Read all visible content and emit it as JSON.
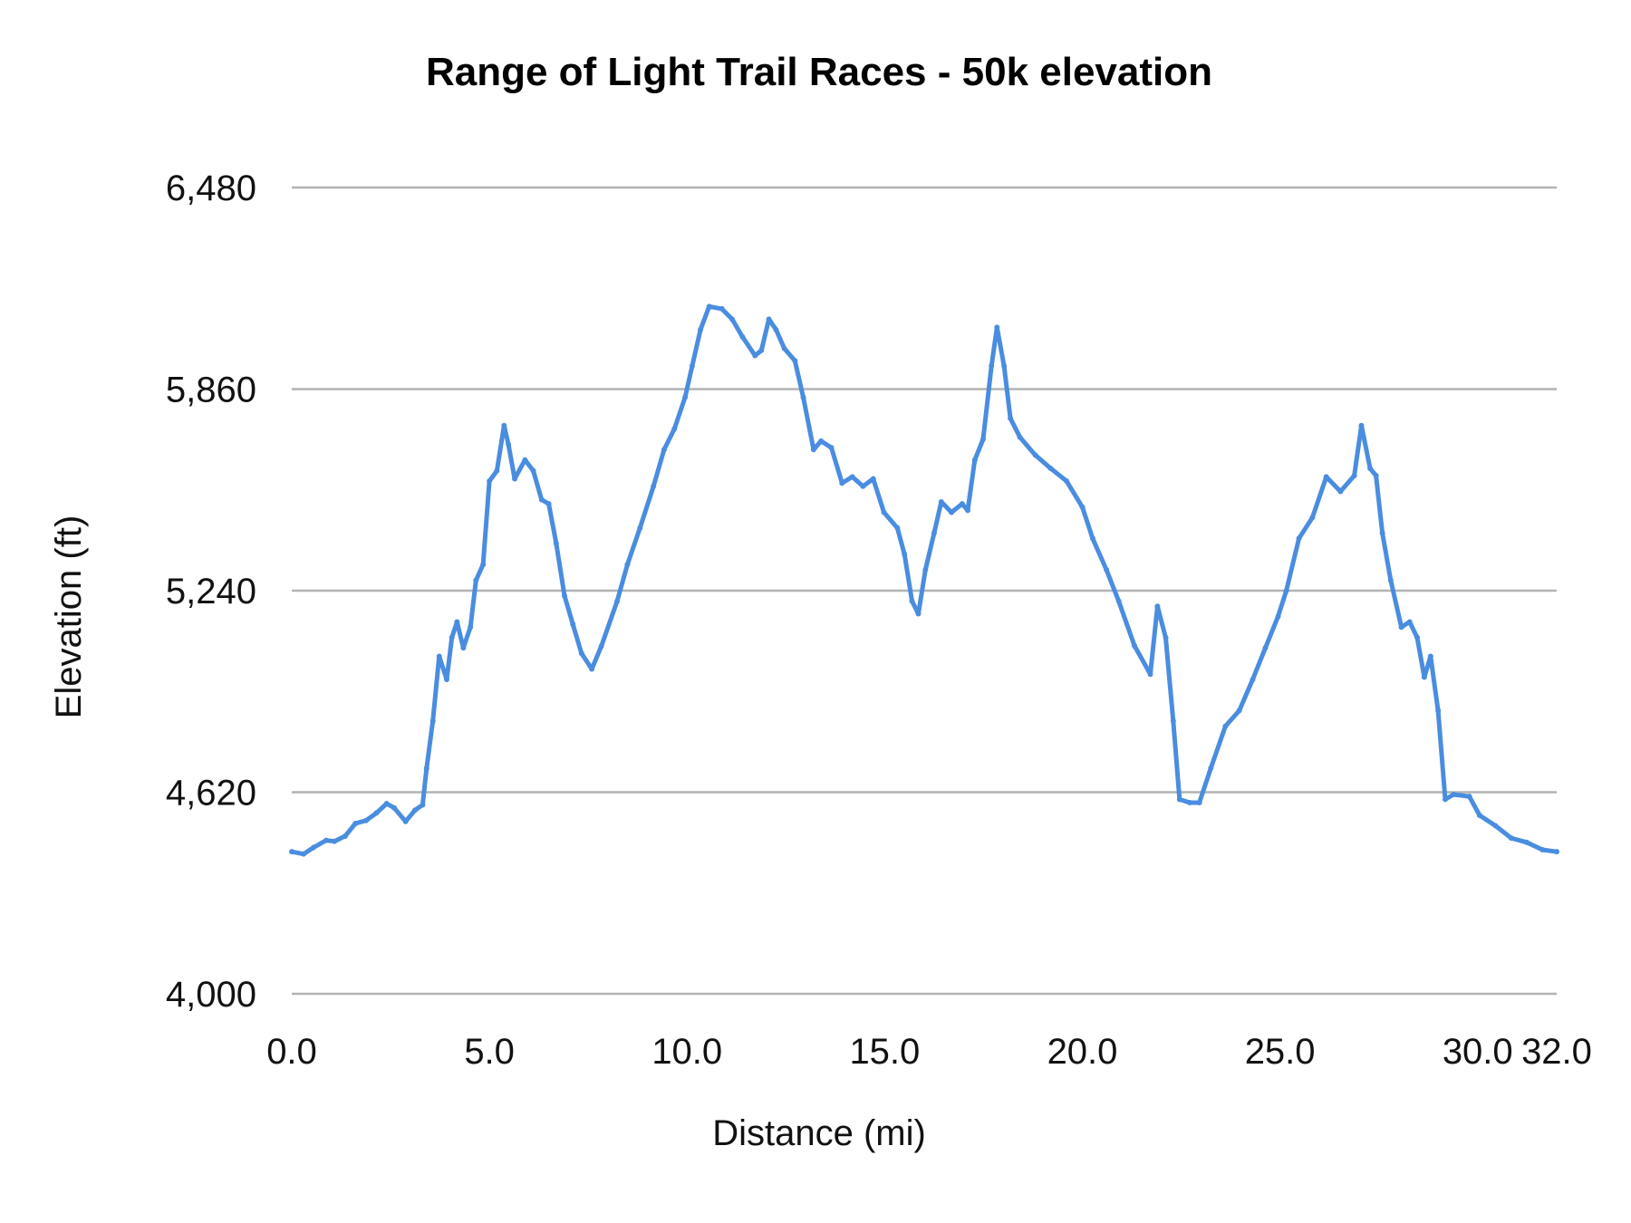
{
  "chart_data": {
    "type": "line",
    "title": "Range of Light Trail Races - 50k elevation",
    "xlabel": "Distance (mi)",
    "ylabel": "Elevation (ft)",
    "xlim": [
      0,
      32
    ],
    "ylim": [
      4000,
      6480
    ],
    "x_ticks": [
      "0.0",
      "5.0",
      "10.0",
      "15.0",
      "20.0",
      "25.0",
      "30.0",
      "32.0"
    ],
    "x_tick_values": [
      0,
      5,
      10,
      15,
      20,
      25,
      30,
      32
    ],
    "y_ticks": [
      "4,000",
      "4,620",
      "5,240",
      "5,860",
      "6,480"
    ],
    "y_tick_values": [
      4000,
      4620,
      5240,
      5860,
      6480
    ],
    "grid": "horizontal",
    "legend": "none",
    "line_color": "#4a8de0",
    "grid_color": "#b3b3b3",
    "series": [
      {
        "x": [
          0,
          0.3,
          0.55,
          0.87,
          1.08,
          1.35,
          1.61,
          1.88,
          2.14,
          2.4,
          2.59,
          2.88,
          3.12,
          3.31,
          3.41,
          3.57,
          3.73,
          3.92,
          4.05,
          4.18,
          4.34,
          4.52,
          4.66,
          4.84,
          5.0,
          5.19,
          5.37,
          5.48,
          5.64,
          5.9,
          6.11,
          6.32,
          6.5,
          6.69,
          6.9,
          7.11,
          7.33,
          7.59,
          7.83,
          8.23,
          8.49,
          8.81,
          9.15,
          9.42,
          9.68,
          9.95,
          10.13,
          10.34,
          10.56,
          10.88,
          11.14,
          11.4,
          11.72,
          11.88,
          12.07,
          12.25,
          12.46,
          12.73,
          12.94,
          13.2,
          13.39,
          13.65,
          13.92,
          14.18,
          14.45,
          14.71,
          14.98,
          15.32,
          15.5,
          15.69,
          15.85,
          16.03,
          16.25,
          16.43,
          16.69,
          16.96,
          17.1,
          17.28,
          17.49,
          17.7,
          17.84,
          18.02,
          18.18,
          18.42,
          18.81,
          19.2,
          19.6,
          20.0,
          20.26,
          20.61,
          20.92,
          21.32,
          21.72,
          21.9,
          22.11,
          22.3,
          22.46,
          22.72,
          22.96,
          23.25,
          23.62,
          23.97,
          24.31,
          24.63,
          24.95,
          25.16,
          25.48,
          25.82,
          26.17,
          26.53,
          26.88,
          27.06,
          27.28,
          27.43,
          27.59,
          27.8,
          28.07,
          28.28,
          28.47,
          28.65,
          28.81,
          29.0,
          29.18,
          29.39,
          29.79,
          30.05,
          30.45,
          30.85,
          31.24,
          31.64,
          32.0
        ],
        "y": [
          4437,
          4430,
          4450,
          4472,
          4469,
          4485,
          4524,
          4533,
          4556,
          4585,
          4572,
          4530,
          4565,
          4581,
          4694,
          4839,
          5038,
          4967,
          5096,
          5144,
          5064,
          5128,
          5272,
          5320,
          5577,
          5609,
          5748,
          5690,
          5584,
          5642,
          5609,
          5520,
          5507,
          5385,
          5224,
          5137,
          5047,
          4999,
          5069,
          5207,
          5320,
          5433,
          5561,
          5674,
          5738,
          5835,
          5931,
          6043,
          6114,
          6107,
          6075,
          6021,
          5963,
          5979,
          6075,
          6043,
          5985,
          5947,
          5835,
          5674,
          5700,
          5680,
          5571,
          5590,
          5561,
          5584,
          5481,
          5433,
          5352,
          5208,
          5169,
          5304,
          5417,
          5513,
          5481,
          5507,
          5487,
          5642,
          5706,
          5931,
          6050,
          5931,
          5770,
          5712,
          5657,
          5616,
          5577,
          5497,
          5401,
          5304,
          5208,
          5070,
          4983,
          5192,
          5095,
          4839,
          4598,
          4588,
          4588,
          4694,
          4823,
          4871,
          4967,
          5064,
          5160,
          5240,
          5401,
          5465,
          5590,
          5545,
          5594,
          5748,
          5616,
          5594,
          5417,
          5272,
          5128,
          5144,
          5096,
          4974,
          5038,
          4871,
          4598,
          4613,
          4607,
          4549,
          4517,
          4479,
          4466,
          4443,
          4437
        ]
      }
    ]
  }
}
